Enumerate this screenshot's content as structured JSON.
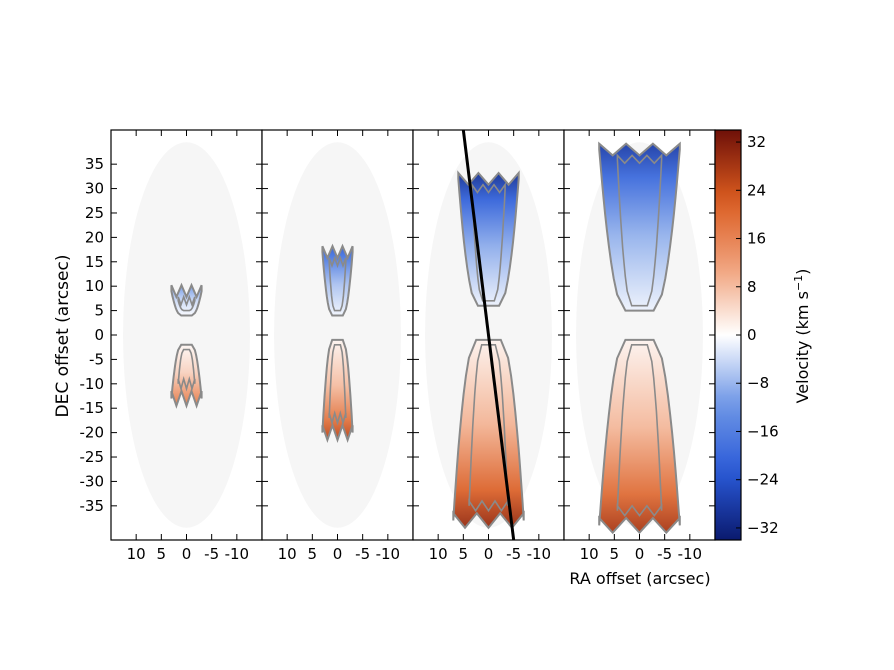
{
  "chart_data": {
    "type": "heatmap",
    "panel_count": 4,
    "ylabel": "DEC offset (arcsec)",
    "xlabel": "RA offset (arcsec)",
    "xlim": [
      15,
      -15
    ],
    "ylim": [
      -42,
      42
    ],
    "x_ticks": [
      10,
      5,
      0,
      -5,
      -10
    ],
    "x_tick_labels": [
      "10",
      "5",
      "0",
      "-5",
      "-10"
    ],
    "y_ticks": [
      35,
      30,
      25,
      20,
      15,
      10,
      5,
      0,
      -5,
      -10,
      -15,
      -20,
      -25,
      -30,
      -35
    ],
    "y_tick_labels": [
      "35",
      "30",
      "25",
      "20",
      "15",
      "10",
      "5",
      "0",
      "-5",
      "-10",
      "-15",
      "-20",
      "-25",
      "-30",
      "-35"
    ],
    "colorbar": {
      "label": "Velocity (km s",
      "label_superscript": "−1",
      "label_close": ")",
      "range": [
        -34,
        34
      ],
      "ticks": [
        32,
        24,
        16,
        8,
        0,
        -8,
        -16,
        -24,
        -32
      ],
      "tick_labels": [
        "32",
        "24",
        "16",
        "8",
        "0",
        "−8",
        "−16",
        "−24",
        "−32"
      ],
      "colormap": [
        "#0a1a6e",
        "#2a5ad8",
        "#6f97e6",
        "#ffffff",
        "#f0a07a",
        "#d95a1e",
        "#6e1008"
      ]
    },
    "panels": [
      {
        "blue_lobe": {
          "x_range": [
            3,
            -3
          ],
          "y_range": [
            4,
            9
          ],
          "velocity_peak": -12
        },
        "red_lobe": {
          "x_range": [
            3,
            -3
          ],
          "y_range": [
            -13,
            -2
          ],
          "velocity_peak": 18
        }
      },
      {
        "blue_lobe": {
          "x_range": [
            3,
            -3
          ],
          "y_range": [
            4,
            17
          ],
          "velocity_peak": -22
        },
        "red_lobe": {
          "x_range": [
            3,
            -3
          ],
          "y_range": [
            -20,
            -1
          ],
          "velocity_peak": 26
        }
      },
      {
        "blue_lobe": {
          "x_range": [
            6,
            -6
          ],
          "y_range": [
            6,
            32
          ],
          "velocity_peak": -30
        },
        "red_lobe": {
          "x_range": [
            7,
            -7
          ],
          "y_range": [
            -38,
            -1
          ],
          "velocity_peak": 30
        },
        "cut_line": {
          "from": [
            5,
            42
          ],
          "to": [
            -5,
            -42
          ]
        }
      },
      {
        "blue_lobe": {
          "x_range": [
            8,
            -8
          ],
          "y_range": [
            5,
            38
          ],
          "velocity_peak": -28
        },
        "red_lobe": {
          "x_range": [
            8,
            -8
          ],
          "y_range": [
            -39,
            -1
          ],
          "velocity_peak": 28
        }
      }
    ]
  }
}
